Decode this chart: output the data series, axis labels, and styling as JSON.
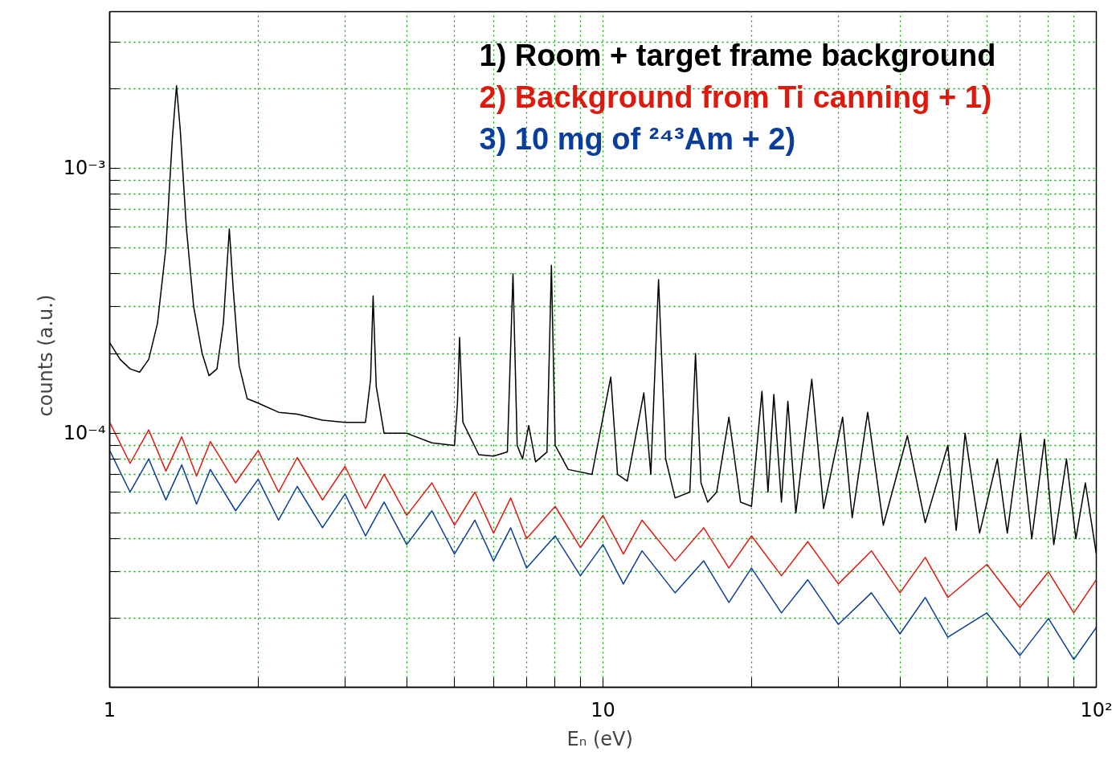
{
  "chart_data": {
    "type": "line",
    "xlabel": "Eₙ  (eV)",
    "ylabel": "counts   (a.u.)",
    "log": "xy",
    "grid": true,
    "legend": "top right",
    "marker": "none",
    "line_style": "solid",
    "xlim": [
      1,
      100
    ],
    "ylim": [
      1.1e-05,
      0.0039
    ],
    "xticks": [
      1,
      {
        "value": 2,
        "label": null
      },
      {
        "value": 3,
        "label": null
      },
      {
        "value": 4,
        "label": null
      },
      {
        "value": 5,
        "label": null
      },
      {
        "value": 6,
        "label": null
      },
      {
        "value": 7,
        "label": null
      },
      {
        "value": 8,
        "label": null
      },
      {
        "value": 9,
        "label": null
      },
      10,
      {
        "value": 20,
        "label": null
      },
      {
        "value": 30,
        "label": null
      },
      {
        "value": 40,
        "label": null
      },
      {
        "value": 50,
        "label": null
      },
      {
        "value": 60,
        "label": null
      },
      {
        "value": 70,
        "label": null
      },
      {
        "value": 80,
        "label": null
      },
      {
        "value": 90,
        "label": null
      },
      {
        "value": 100,
        "label": "10²"
      }
    ],
    "yticks": [
      {
        "value": 2e-05,
        "label": null
      },
      {
        "value": 3e-05,
        "label": null
      },
      {
        "value": 4e-05,
        "label": null
      },
      {
        "value": 5e-05,
        "label": null
      },
      {
        "value": 6e-05,
        "label": null
      },
      {
        "value": 7e-05,
        "label": null
      },
      {
        "value": 8e-05,
        "label": null
      },
      {
        "value": 9e-05,
        "label": null
      },
      {
        "value": 0.0001,
        "label": "10⁻⁴"
      },
      {
        "value": 0.0002,
        "label": null
      },
      {
        "value": 0.0003,
        "label": null
      },
      {
        "value": 0.0004,
        "label": null
      },
      {
        "value": 0.0005,
        "label": null
      },
      {
        "value": 0.0006,
        "label": null
      },
      {
        "value": 0.0007,
        "label": null
      },
      {
        "value": 0.0008,
        "label": null
      },
      {
        "value": 0.0009,
        "label": null
      },
      {
        "value": 0.001,
        "label": "10⁻³"
      },
      {
        "value": 0.002,
        "label": null
      },
      {
        "value": 0.003,
        "label": null
      }
    ],
    "series": [
      {
        "name": "1) Room + target frame background",
        "color": "#000000",
        "x": [
          1,
          1.05,
          1.1,
          1.15,
          1.2,
          1.25,
          1.3,
          1.34,
          1.366,
          1.39,
          1.43,
          1.48,
          1.54,
          1.59,
          1.65,
          1.7,
          1.748,
          1.78,
          1.83,
          1.9,
          2.0,
          2.2,
          2.4,
          2.7,
          3.0,
          3.3,
          3.38,
          3.42,
          3.47,
          3.6,
          4.0,
          4.5,
          5.0,
          5.07,
          5.12,
          5.2,
          5.6,
          6.0,
          6.4,
          6.57,
          6.7,
          6.87,
          7.07,
          7.3,
          7.7,
          7.86,
          8.0,
          8.5,
          9.5,
          10.37,
          10.7,
          11.2,
          12.1,
          12.5,
          12.96,
          13.4,
          14.0,
          15.0,
          15.4,
          15.8,
          16.3,
          17.0,
          18.0,
          19.0,
          20.0,
          21.0,
          21.6,
          22.2,
          23.0,
          23.7,
          24.6,
          26.5,
          28.0,
          30.6,
          32,
          34.4,
          37,
          41.4,
          45,
          50,
          52,
          54.2,
          58,
          63,
          66,
          70.2,
          74,
          78.5,
          82,
          87,
          90.9,
          95,
          100
        ],
        "values": [
          0.00022,
          0.00019,
          0.000175,
          0.00017,
          0.00019,
          0.00026,
          0.0005,
          0.0013,
          0.00205,
          0.0014,
          0.0006,
          0.0003,
          0.0002,
          0.000165,
          0.000175,
          0.00026,
          0.00059,
          0.00035,
          0.00018,
          0.000135,
          0.00013,
          0.00012,
          0.000118,
          0.000112,
          0.00011,
          0.00011,
          0.00016,
          0.00033,
          0.00015,
          0.0001,
          0.0001,
          9.2e-05,
          9e-05,
          0.00013,
          0.00023,
          0.00011,
          8.3e-05,
          8.2e-05,
          8.5e-05,
          0.0004,
          9e-05,
          8e-05,
          0.000107,
          7.8e-05,
          8.5e-05,
          0.00043,
          9e-05,
          7.3e-05,
          7e-05,
          0.000163,
          7e-05,
          6.6e-05,
          0.000142,
          7e-05,
          0.00038,
          8e-05,
          5.7e-05,
          6e-05,
          0.0002,
          6.5e-05,
          5.5e-05,
          6e-05,
          0.000115,
          5.5e-05,
          5.3e-05,
          0.000144,
          6e-05,
          0.00014,
          5.5e-05,
          0.000132,
          5e-05,
          0.00016,
          5.2e-05,
          0.000115,
          4.8e-05,
          0.00012,
          4.5e-05,
          9.8e-05,
          4.6e-05,
          9e-05,
          4.3e-05,
          0.0001,
          4.2e-05,
          8e-05,
          4.2e-05,
          0.0001,
          4e-05,
          9.5e-05,
          3.8e-05,
          8e-05,
          4e-05,
          6.5e-05,
          3.5e-05
        ]
      },
      {
        "name": "2) Background from Ti canning + 1)",
        "color": "#dd1a0e",
        "x": [
          1,
          1.1,
          1.2,
          1.3,
          1.4,
          1.5,
          1.6,
          1.8,
          2,
          2.2,
          2.4,
          2.7,
          3,
          3.3,
          3.6,
          4,
          4.5,
          5,
          5.5,
          6,
          6.5,
          7,
          8,
          9,
          10,
          11,
          12,
          14,
          16,
          18,
          20,
          23,
          26,
          30,
          35,
          40,
          45,
          50,
          60,
          70,
          80,
          90,
          100
        ],
        "values": [
          0.00011,
          7.7e-05,
          0.000103,
          7.2e-05,
          9.7e-05,
          6.9e-05,
          9.3e-05,
          6.5e-05,
          8.6e-05,
          6e-05,
          8.1e-05,
          5.6e-05,
          7.5e-05,
          5.2e-05,
          7e-05,
          4.9e-05,
          6.5e-05,
          4.5e-05,
          6e-05,
          4.2e-05,
          5.7e-05,
          4e-05,
          5.3e-05,
          3.7e-05,
          4.9e-05,
          3.5e-05,
          4.7e-05,
          3.3e-05,
          4.4e-05,
          3.1e-05,
          4.1e-05,
          2.9e-05,
          3.9e-05,
          2.7e-05,
          3.6e-05,
          2.5e-05,
          3.4e-05,
          2.4e-05,
          3.2e-05,
          2.2e-05,
          3e-05,
          2.1e-05,
          2.8e-05
        ]
      },
      {
        "name": "3) 10 mg of ²⁴³Am + 2)",
        "color": "#0a3e9a",
        "x": [
          1,
          1.1,
          1.2,
          1.3,
          1.4,
          1.5,
          1.6,
          1.8,
          2,
          2.2,
          2.4,
          2.7,
          3,
          3.3,
          3.6,
          4,
          4.5,
          5,
          5.5,
          6,
          6.5,
          7,
          8,
          9,
          10,
          11,
          12,
          14,
          16,
          18,
          20,
          23,
          26,
          30,
          35,
          40,
          45,
          50,
          60,
          70,
          80,
          90,
          100
        ],
        "values": [
          8.6e-05,
          6e-05,
          8e-05,
          5.6e-05,
          7.6e-05,
          5.4e-05,
          7.3e-05,
          5.1e-05,
          6.7e-05,
          4.7e-05,
          6.3e-05,
          4.4e-05,
          5.9e-05,
          4.1e-05,
          5.5e-05,
          3.8e-05,
          5.1e-05,
          3.5e-05,
          4.7e-05,
          3.3e-05,
          4.4e-05,
          3.1e-05,
          4.1e-05,
          2.9e-05,
          3.8e-05,
          2.7e-05,
          3.6e-05,
          2.5e-05,
          3.3e-05,
          2.3e-05,
          3.1e-05,
          2.1e-05,
          2.8e-05,
          1.9e-05,
          2.5e-05,
          1.75e-05,
          2.4e-05,
          1.7e-05,
          2.1e-05,
          1.45e-05,
          2e-05,
          1.4e-05,
          1.85e-05
        ]
      }
    ]
  }
}
